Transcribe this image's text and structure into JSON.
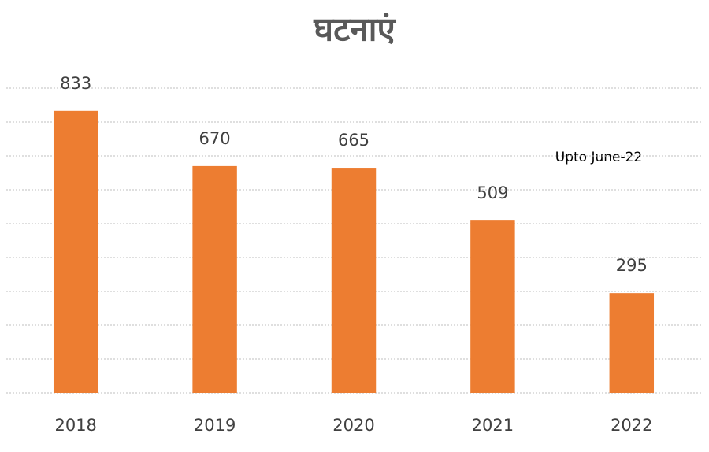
{
  "chart_data": {
    "type": "bar",
    "title": "घटनाएं",
    "categories": [
      "2018",
      "2019",
      "2020",
      "2021",
      "2022"
    ],
    "values": [
      833,
      670,
      665,
      509,
      295
    ],
    "color": "#ed7d31",
    "ylim": [
      0,
      900
    ],
    "yticks": [
      0,
      100,
      200,
      300,
      400,
      500,
      600,
      700,
      800,
      900
    ],
    "grid": true,
    "annotations": [
      "Upto June-22"
    ]
  }
}
